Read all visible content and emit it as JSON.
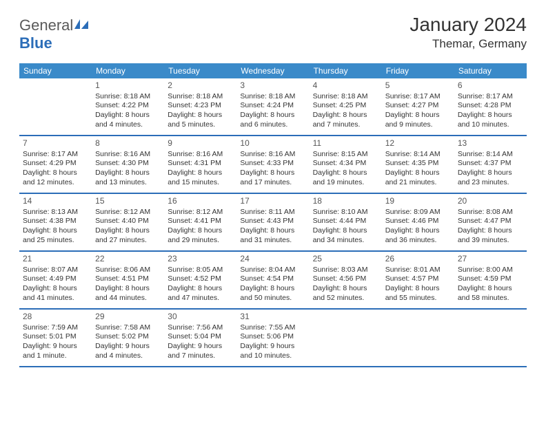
{
  "logo": {
    "word1": "General",
    "word2": "Blue"
  },
  "title": "January 2024",
  "location": "Themar, Germany",
  "dayNames": [
    "Sunday",
    "Monday",
    "Tuesday",
    "Wednesday",
    "Thursday",
    "Friday",
    "Saturday"
  ],
  "colors": {
    "headerBg": "#3a8ac9",
    "borderBlue": "#2b6db8",
    "text": "#333333"
  },
  "weeks": [
    [
      {
        "n": "",
        "sunrise": "",
        "sunset": "",
        "daylight1": "",
        "daylight2": ""
      },
      {
        "n": "1",
        "sunrise": "Sunrise: 8:18 AM",
        "sunset": "Sunset: 4:22 PM",
        "daylight1": "Daylight: 8 hours",
        "daylight2": "and 4 minutes."
      },
      {
        "n": "2",
        "sunrise": "Sunrise: 8:18 AM",
        "sunset": "Sunset: 4:23 PM",
        "daylight1": "Daylight: 8 hours",
        "daylight2": "and 5 minutes."
      },
      {
        "n": "3",
        "sunrise": "Sunrise: 8:18 AM",
        "sunset": "Sunset: 4:24 PM",
        "daylight1": "Daylight: 8 hours",
        "daylight2": "and 6 minutes."
      },
      {
        "n": "4",
        "sunrise": "Sunrise: 8:18 AM",
        "sunset": "Sunset: 4:25 PM",
        "daylight1": "Daylight: 8 hours",
        "daylight2": "and 7 minutes."
      },
      {
        "n": "5",
        "sunrise": "Sunrise: 8:17 AM",
        "sunset": "Sunset: 4:27 PM",
        "daylight1": "Daylight: 8 hours",
        "daylight2": "and 9 minutes."
      },
      {
        "n": "6",
        "sunrise": "Sunrise: 8:17 AM",
        "sunset": "Sunset: 4:28 PM",
        "daylight1": "Daylight: 8 hours",
        "daylight2": "and 10 minutes."
      }
    ],
    [
      {
        "n": "7",
        "sunrise": "Sunrise: 8:17 AM",
        "sunset": "Sunset: 4:29 PM",
        "daylight1": "Daylight: 8 hours",
        "daylight2": "and 12 minutes."
      },
      {
        "n": "8",
        "sunrise": "Sunrise: 8:16 AM",
        "sunset": "Sunset: 4:30 PM",
        "daylight1": "Daylight: 8 hours",
        "daylight2": "and 13 minutes."
      },
      {
        "n": "9",
        "sunrise": "Sunrise: 8:16 AM",
        "sunset": "Sunset: 4:31 PM",
        "daylight1": "Daylight: 8 hours",
        "daylight2": "and 15 minutes."
      },
      {
        "n": "10",
        "sunrise": "Sunrise: 8:16 AM",
        "sunset": "Sunset: 4:33 PM",
        "daylight1": "Daylight: 8 hours",
        "daylight2": "and 17 minutes."
      },
      {
        "n": "11",
        "sunrise": "Sunrise: 8:15 AM",
        "sunset": "Sunset: 4:34 PM",
        "daylight1": "Daylight: 8 hours",
        "daylight2": "and 19 minutes."
      },
      {
        "n": "12",
        "sunrise": "Sunrise: 8:14 AM",
        "sunset": "Sunset: 4:35 PM",
        "daylight1": "Daylight: 8 hours",
        "daylight2": "and 21 minutes."
      },
      {
        "n": "13",
        "sunrise": "Sunrise: 8:14 AM",
        "sunset": "Sunset: 4:37 PM",
        "daylight1": "Daylight: 8 hours",
        "daylight2": "and 23 minutes."
      }
    ],
    [
      {
        "n": "14",
        "sunrise": "Sunrise: 8:13 AM",
        "sunset": "Sunset: 4:38 PM",
        "daylight1": "Daylight: 8 hours",
        "daylight2": "and 25 minutes."
      },
      {
        "n": "15",
        "sunrise": "Sunrise: 8:12 AM",
        "sunset": "Sunset: 4:40 PM",
        "daylight1": "Daylight: 8 hours",
        "daylight2": "and 27 minutes."
      },
      {
        "n": "16",
        "sunrise": "Sunrise: 8:12 AM",
        "sunset": "Sunset: 4:41 PM",
        "daylight1": "Daylight: 8 hours",
        "daylight2": "and 29 minutes."
      },
      {
        "n": "17",
        "sunrise": "Sunrise: 8:11 AM",
        "sunset": "Sunset: 4:43 PM",
        "daylight1": "Daylight: 8 hours",
        "daylight2": "and 31 minutes."
      },
      {
        "n": "18",
        "sunrise": "Sunrise: 8:10 AM",
        "sunset": "Sunset: 4:44 PM",
        "daylight1": "Daylight: 8 hours",
        "daylight2": "and 34 minutes."
      },
      {
        "n": "19",
        "sunrise": "Sunrise: 8:09 AM",
        "sunset": "Sunset: 4:46 PM",
        "daylight1": "Daylight: 8 hours",
        "daylight2": "and 36 minutes."
      },
      {
        "n": "20",
        "sunrise": "Sunrise: 8:08 AM",
        "sunset": "Sunset: 4:47 PM",
        "daylight1": "Daylight: 8 hours",
        "daylight2": "and 39 minutes."
      }
    ],
    [
      {
        "n": "21",
        "sunrise": "Sunrise: 8:07 AM",
        "sunset": "Sunset: 4:49 PM",
        "daylight1": "Daylight: 8 hours",
        "daylight2": "and 41 minutes."
      },
      {
        "n": "22",
        "sunrise": "Sunrise: 8:06 AM",
        "sunset": "Sunset: 4:51 PM",
        "daylight1": "Daylight: 8 hours",
        "daylight2": "and 44 minutes."
      },
      {
        "n": "23",
        "sunrise": "Sunrise: 8:05 AM",
        "sunset": "Sunset: 4:52 PM",
        "daylight1": "Daylight: 8 hours",
        "daylight2": "and 47 minutes."
      },
      {
        "n": "24",
        "sunrise": "Sunrise: 8:04 AM",
        "sunset": "Sunset: 4:54 PM",
        "daylight1": "Daylight: 8 hours",
        "daylight2": "and 50 minutes."
      },
      {
        "n": "25",
        "sunrise": "Sunrise: 8:03 AM",
        "sunset": "Sunset: 4:56 PM",
        "daylight1": "Daylight: 8 hours",
        "daylight2": "and 52 minutes."
      },
      {
        "n": "26",
        "sunrise": "Sunrise: 8:01 AM",
        "sunset": "Sunset: 4:57 PM",
        "daylight1": "Daylight: 8 hours",
        "daylight2": "and 55 minutes."
      },
      {
        "n": "27",
        "sunrise": "Sunrise: 8:00 AM",
        "sunset": "Sunset: 4:59 PM",
        "daylight1": "Daylight: 8 hours",
        "daylight2": "and 58 minutes."
      }
    ],
    [
      {
        "n": "28",
        "sunrise": "Sunrise: 7:59 AM",
        "sunset": "Sunset: 5:01 PM",
        "daylight1": "Daylight: 9 hours",
        "daylight2": "and 1 minute."
      },
      {
        "n": "29",
        "sunrise": "Sunrise: 7:58 AM",
        "sunset": "Sunset: 5:02 PM",
        "daylight1": "Daylight: 9 hours",
        "daylight2": "and 4 minutes."
      },
      {
        "n": "30",
        "sunrise": "Sunrise: 7:56 AM",
        "sunset": "Sunset: 5:04 PM",
        "daylight1": "Daylight: 9 hours",
        "daylight2": "and 7 minutes."
      },
      {
        "n": "31",
        "sunrise": "Sunrise: 7:55 AM",
        "sunset": "Sunset: 5:06 PM",
        "daylight1": "Daylight: 9 hours",
        "daylight2": "and 10 minutes."
      },
      {
        "n": "",
        "sunrise": "",
        "sunset": "",
        "daylight1": "",
        "daylight2": ""
      },
      {
        "n": "",
        "sunrise": "",
        "sunset": "",
        "daylight1": "",
        "daylight2": ""
      },
      {
        "n": "",
        "sunrise": "",
        "sunset": "",
        "daylight1": "",
        "daylight2": ""
      }
    ]
  ]
}
